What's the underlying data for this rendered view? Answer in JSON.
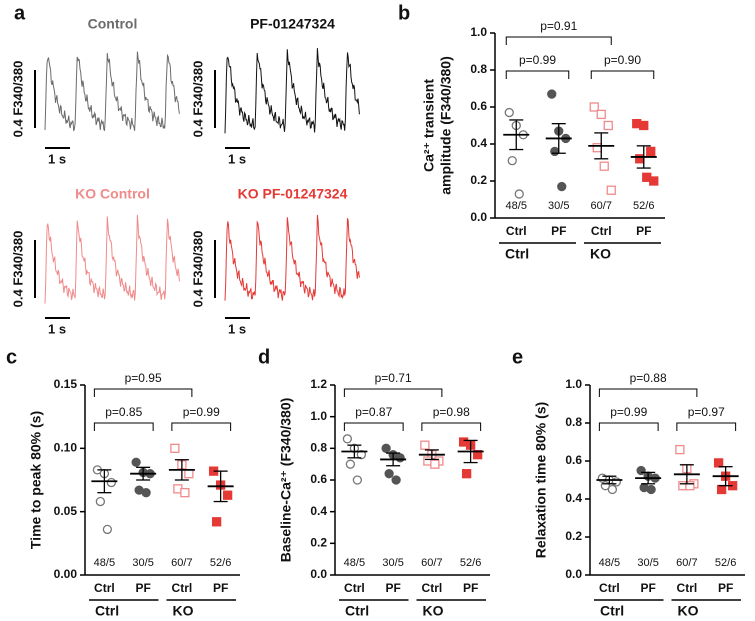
{
  "panel_a": {
    "label": "a",
    "scale_y": "0.4 F340/380",
    "scale_x": "1 s",
    "traces": [
      {
        "title": "Control",
        "color": "#6b6b6b"
      },
      {
        "title": "PF-01247324",
        "color": "#111111"
      },
      {
        "title": "KO Control",
        "color": "#f08a8a"
      },
      {
        "title": "KO PF-01247324",
        "color": "#e53935"
      }
    ]
  },
  "chart_data": [
    {
      "type": "dot",
      "panel": "b",
      "ylabel": [
        "Ca²⁺ transient",
        "amplitude (F340/380)"
      ],
      "ylim": [
        0,
        1
      ],
      "yticks": [
        {
          "value": 0,
          "label": "0.0"
        },
        {
          "value": 0.2,
          "label": "0.2"
        },
        {
          "value": 0.4,
          "label": "0.4"
        },
        {
          "value": 0.6,
          "label": "0.6"
        },
        {
          "value": 0.8,
          "label": "0.8"
        },
        {
          "value": 1,
          "label": "1.0"
        }
      ],
      "groups": [
        {
          "name": "Ctrl",
          "n": "48/5",
          "color": "#777777",
          "marker": "circle",
          "filled": false,
          "values": [
            0.57,
            0.5,
            0.45,
            0.31,
            0.13
          ],
          "mean": 0.45,
          "sem": 0.08
        },
        {
          "name": "PF",
          "n": "30/5",
          "color": "#555555",
          "marker": "circle",
          "filled": true,
          "values": [
            0.67,
            0.47,
            0.43,
            0.36,
            0.17
          ],
          "mean": 0.43,
          "sem": 0.08
        },
        {
          "name": "Ctrl",
          "n": "60/7",
          "color": "#f08a8a",
          "marker": "square",
          "filled": false,
          "values": [
            0.6,
            0.56,
            0.5,
            0.38,
            0.28,
            0.15
          ],
          "mean": 0.39,
          "sem": 0.07
        },
        {
          "name": "PF",
          "n": "52/6",
          "color": "#e53935",
          "marker": "square",
          "filled": true,
          "values": [
            0.51,
            0.5,
            0.36,
            0.32,
            0.22,
            0.2
          ],
          "mean": 0.33,
          "sem": 0.06
        }
      ],
      "genotypes": [
        "Ctrl",
        "KO"
      ],
      "comparisons": [
        "p=0.91",
        "p=0.99",
        "p=0.90"
      ]
    },
    {
      "type": "dot",
      "panel": "c",
      "ylabel": [
        "Time to peak 80% (s)"
      ],
      "ylim": [
        0,
        0.15
      ],
      "yticks": [
        {
          "value": 0,
          "label": "0.00"
        },
        0.05,
        {
          "value": 0.1,
          "label": "0.10"
        },
        0.15
      ],
      "groups": [
        {
          "name": "Ctrl",
          "n": "48/5",
          "color": "#777777",
          "marker": "circle",
          "filled": false,
          "values": [
            0.083,
            0.08,
            0.073,
            0.058,
            0.036
          ],
          "mean": 0.074,
          "sem": 0.009
        },
        {
          "name": "PF",
          "n": "30/5",
          "color": "#555555",
          "marker": "circle",
          "filled": true,
          "values": [
            0.089,
            0.081,
            0.08,
            0.067,
            0.065
          ],
          "mean": 0.08,
          "sem": 0.005
        },
        {
          "name": "Ctrl",
          "n": "60/7",
          "color": "#f08a8a",
          "marker": "square",
          "filled": false,
          "values": [
            0.1,
            0.087,
            0.08,
            0.068,
            0.065
          ],
          "mean": 0.083,
          "sem": 0.008
        },
        {
          "name": "PF",
          "n": "52/6",
          "color": "#e53935",
          "marker": "square",
          "filled": true,
          "values": [
            0.082,
            0.071,
            0.063,
            0.042
          ],
          "mean": 0.07,
          "sem": 0.012
        }
      ],
      "genotypes": [
        "Ctrl",
        "KO"
      ],
      "comparisons": [
        "p=0.95",
        "p=0.85",
        "p=0.99"
      ]
    },
    {
      "type": "dot",
      "panel": "d",
      "ylabel": [
        "Baseline-Ca²⁺ (F340/380)"
      ],
      "ylim": [
        0,
        1.2
      ],
      "yticks": [
        {
          "value": 0,
          "label": "0.0"
        },
        {
          "value": 0.2,
          "label": "0.2"
        },
        {
          "value": 0.4,
          "label": "0.4"
        },
        {
          "value": 0.6,
          "label": "0.6"
        },
        {
          "value": 0.8,
          "label": "0.8"
        },
        {
          "value": 1,
          "label": "1.0"
        },
        1.2
      ],
      "groups": [
        {
          "name": "Ctrl",
          "n": "48/5",
          "color": "#777777",
          "marker": "circle",
          "filled": false,
          "values": [
            0.86,
            0.8,
            0.76,
            0.7,
            0.6
          ],
          "mean": 0.78,
          "sem": 0.04
        },
        {
          "name": "PF",
          "n": "30/5",
          "color": "#555555",
          "marker": "circle",
          "filled": true,
          "values": [
            0.8,
            0.76,
            0.74,
            0.64,
            0.6
          ],
          "mean": 0.73,
          "sem": 0.04
        },
        {
          "name": "Ctrl",
          "n": "60/7",
          "color": "#f08a8a",
          "marker": "square",
          "filled": false,
          "values": [
            0.82,
            0.76,
            0.72,
            0.72,
            0.7
          ],
          "mean": 0.76,
          "sem": 0.03
        },
        {
          "name": "PF",
          "n": "52/6",
          "color": "#e53935",
          "marker": "square",
          "filled": true,
          "values": [
            0.84,
            0.82,
            0.76,
            0.64
          ],
          "mean": 0.78,
          "sem": 0.07
        }
      ],
      "genotypes": [
        "Ctrl",
        "KO"
      ],
      "comparisons": [
        "p=0.71",
        "p=0.87",
        "p=0.98"
      ]
    },
    {
      "type": "dot",
      "panel": "e",
      "ylabel": [
        "Relaxation time 80% (s)"
      ],
      "ylim": [
        0,
        1
      ],
      "yticks": [
        {
          "value": 0,
          "label": "0.0"
        },
        {
          "value": 0.2,
          "label": "0.2"
        },
        {
          "value": 0.4,
          "label": "0.4"
        },
        {
          "value": 0.6,
          "label": "0.6"
        },
        {
          "value": 0.8,
          "label": "0.8"
        },
        {
          "value": 1,
          "label": "1.0"
        }
      ],
      "groups": [
        {
          "name": "Ctrl",
          "n": "48/5",
          "color": "#777777",
          "marker": "circle",
          "filled": false,
          "values": [
            0.51,
            0.5,
            0.49,
            0.47,
            0.45
          ],
          "mean": 0.5,
          "sem": 0.02
        },
        {
          "name": "PF",
          "n": "30/5",
          "color": "#555555",
          "marker": "circle",
          "filled": true,
          "values": [
            0.55,
            0.52,
            0.51,
            0.46,
            0.45
          ],
          "mean": 0.51,
          "sem": 0.03
        },
        {
          "name": "Ctrl",
          "n": "60/7",
          "color": "#f08a8a",
          "marker": "square",
          "filled": false,
          "values": [
            0.66,
            0.56,
            0.48,
            0.47,
            0.47
          ],
          "mean": 0.53,
          "sem": 0.05
        },
        {
          "name": "PF",
          "n": "52/6",
          "color": "#e53935",
          "marker": "square",
          "filled": true,
          "values": [
            0.59,
            0.52,
            0.47,
            0.45
          ],
          "mean": 0.52,
          "sem": 0.05
        }
      ],
      "genotypes": [
        "Ctrl",
        "KO"
      ],
      "comparisons": [
        "p=0.88",
        "p=0.99",
        "p=0.97"
      ]
    }
  ]
}
